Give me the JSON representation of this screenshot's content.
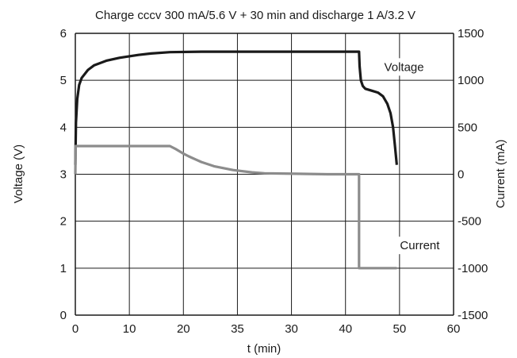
{
  "chart_data": {
    "type": "line",
    "title": "Charge cccv 300 mA/5.6 V + 30 min and discharge 1 A/3.2 V",
    "xlabel": "t (min)",
    "ylabel_left": "Voltage (V)",
    "ylabel_right": "Current (mA)",
    "xlim": [
      0,
      60
    ],
    "ylim_left": [
      0,
      6
    ],
    "ylim_right": [
      -1500,
      1500
    ],
    "x_ticks": [
      "0",
      "10",
      "20",
      "35",
      "30",
      "40",
      "50",
      "60"
    ],
    "y_ticks_left": [
      "0",
      "1",
      "2",
      "3",
      "4",
      "5",
      "6"
    ],
    "y_ticks_right": [
      "-1500",
      "-1000",
      "-500",
      "0",
      "500",
      "1000",
      "1500"
    ],
    "grid": true,
    "colors": {
      "voltage": "#1a1a1a",
      "current": "#8c8c8c",
      "grid": "#1a1a1a"
    },
    "series": [
      {
        "name": "Voltage",
        "axis": "left",
        "x": [
          0,
          0.1,
          0.3,
          0.6,
          1,
          2,
          3,
          5,
          7,
          10,
          12,
          15,
          20,
          30,
          40,
          45,
          45.1,
          45.3,
          45.6,
          46,
          47,
          48,
          48.8,
          49.5,
          50,
          50.4,
          50.7,
          51
        ],
        "values": [
          3.2,
          4.1,
          4.6,
          4.9,
          5.05,
          5.22,
          5.32,
          5.42,
          5.48,
          5.54,
          5.57,
          5.6,
          5.61,
          5.61,
          5.61,
          5.61,
          5.3,
          5.0,
          4.88,
          4.82,
          4.78,
          4.74,
          4.66,
          4.5,
          4.3,
          4.0,
          3.6,
          3.2
        ]
      },
      {
        "name": "Current",
        "axis": "right",
        "x": [
          0,
          0.05,
          15,
          16,
          17,
          18,
          19,
          20,
          22,
          25,
          28,
          30,
          35,
          40,
          45,
          45,
          51
        ],
        "values": [
          0,
          300,
          300,
          265,
          225,
          190,
          160,
          130,
          85,
          45,
          20,
          10,
          5,
          0,
          0,
          -1000,
          -1000
        ]
      }
    ],
    "annotations": [
      {
        "text": "Voltage",
        "x": 49,
        "y": 5.2,
        "axis": "left"
      },
      {
        "text": "Current",
        "x": 51.5,
        "y": 1.4,
        "axis": "left"
      }
    ]
  }
}
